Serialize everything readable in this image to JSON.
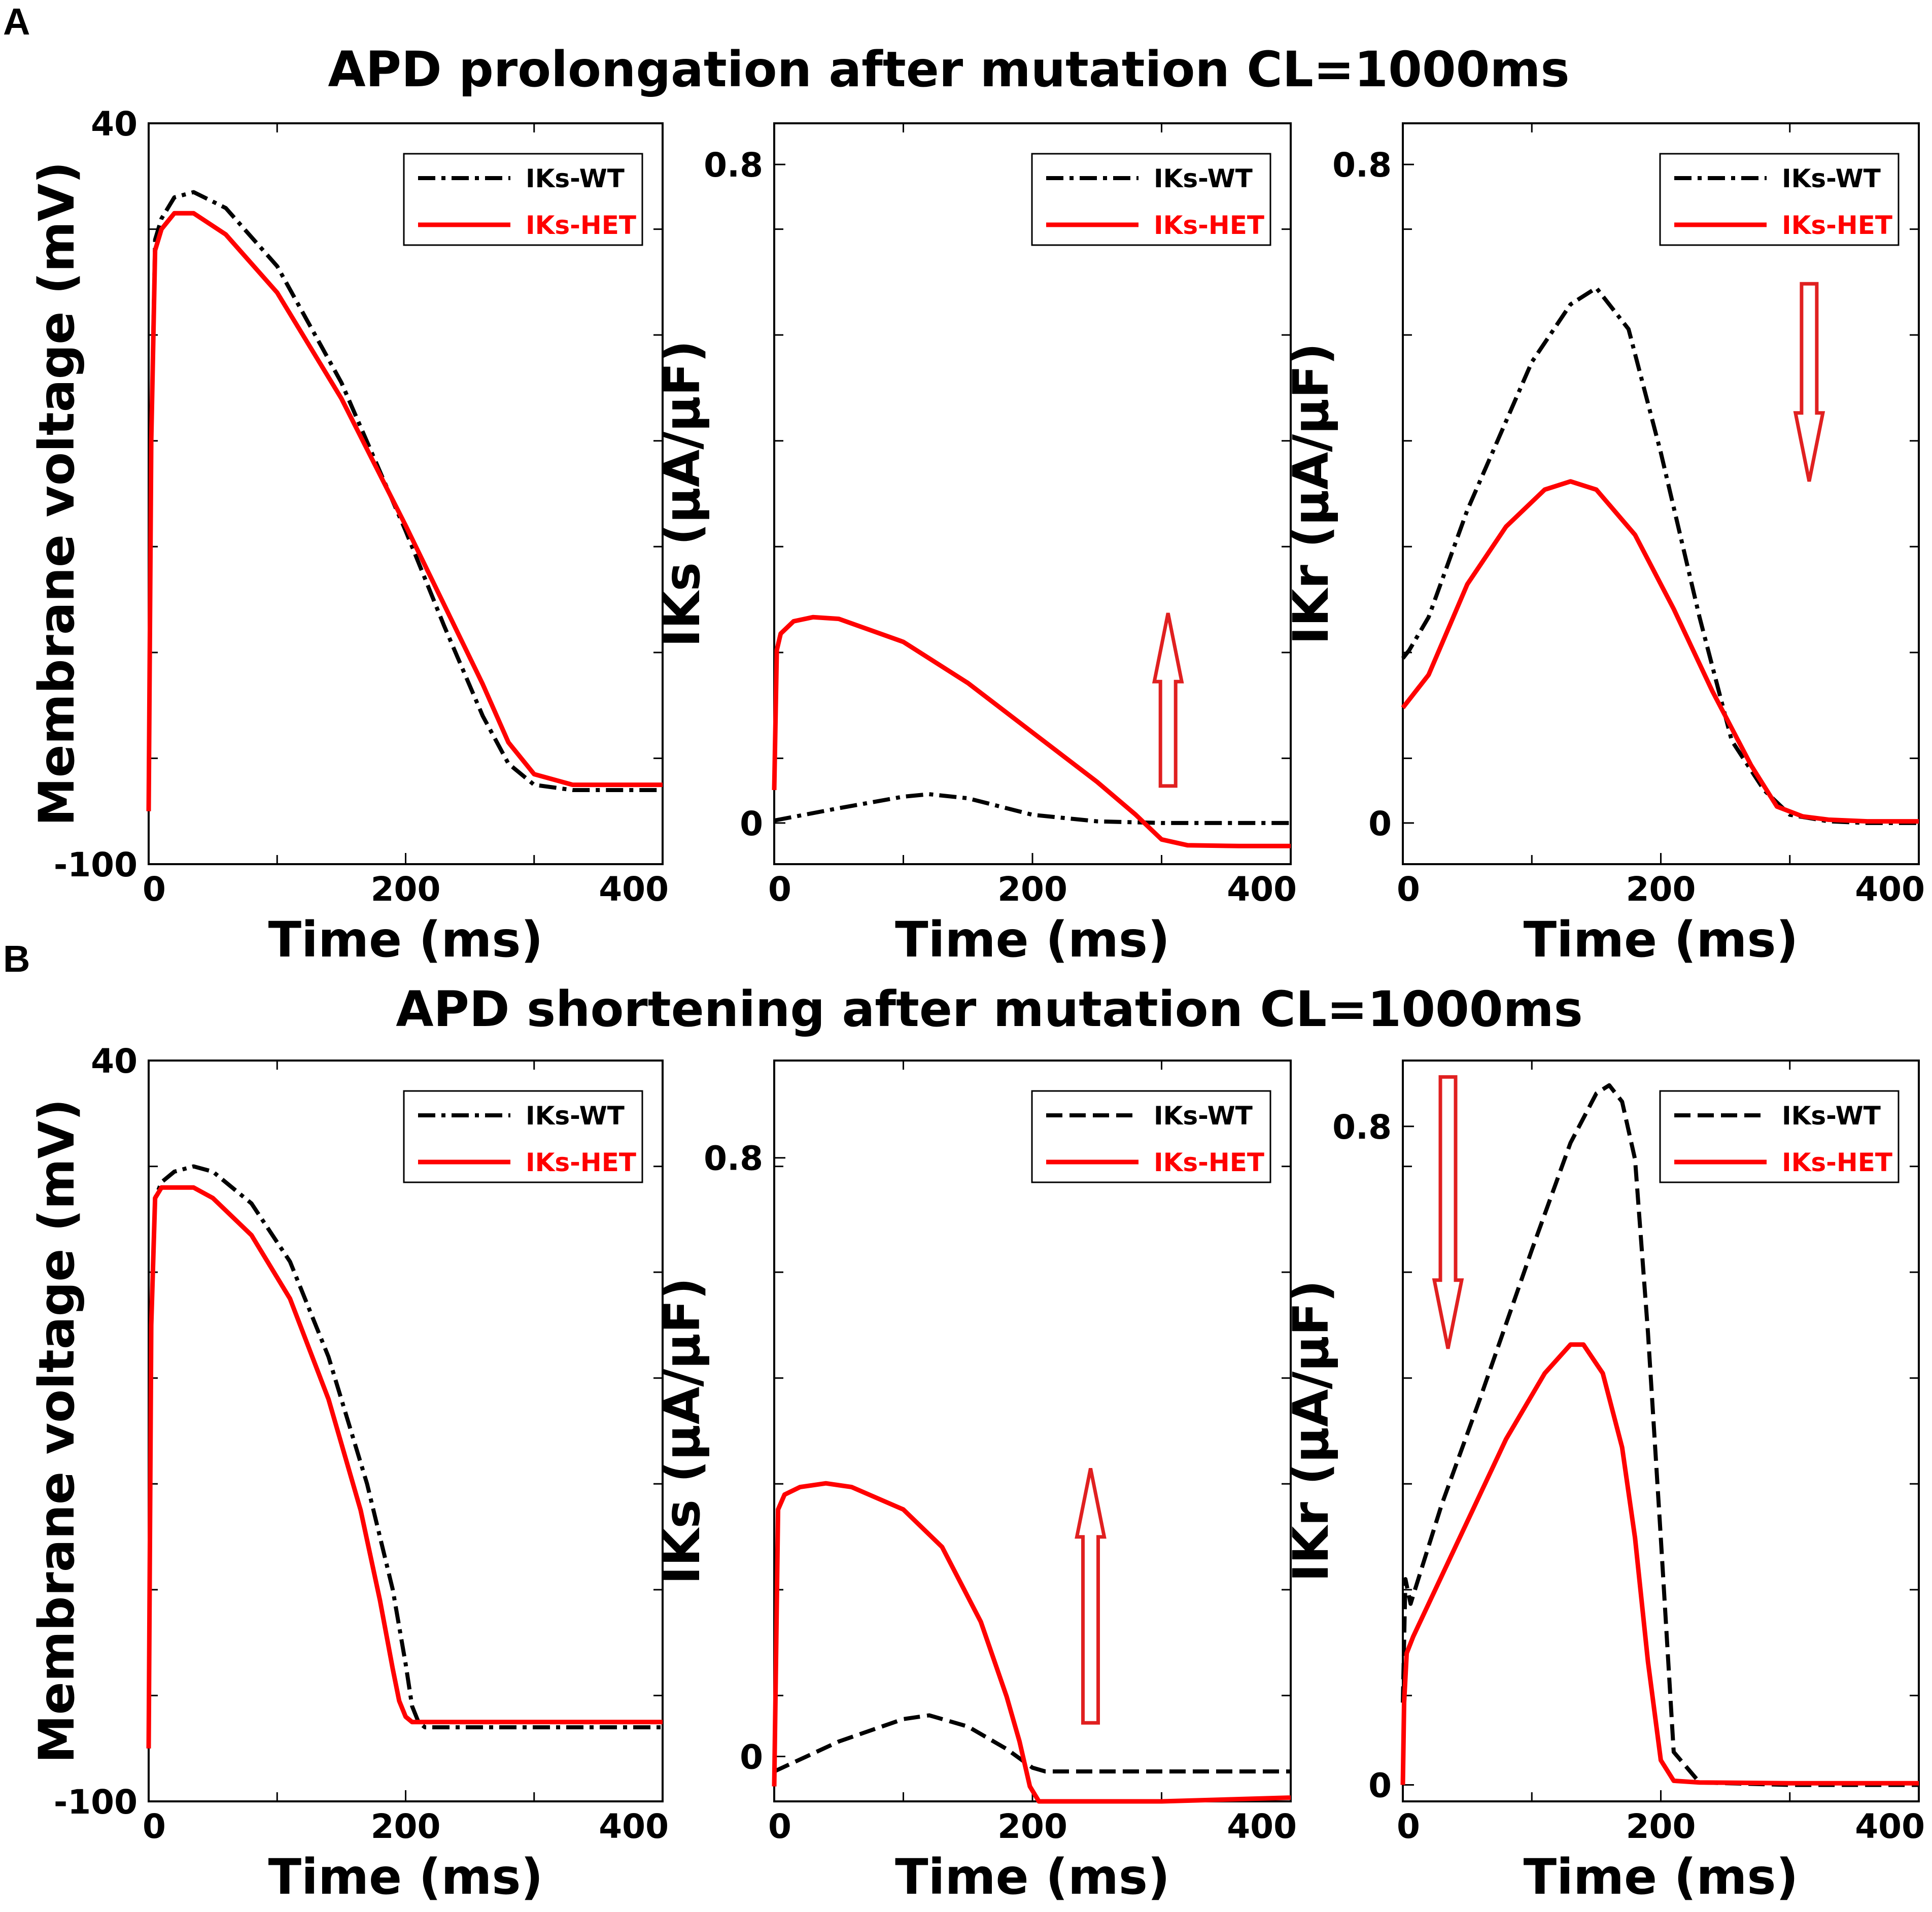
{
  "colors": {
    "wt": "#000000",
    "het": "#ff0000",
    "arrow": "#e02020"
  },
  "panels": [
    {
      "letter": "A",
      "title": "APD prolongation after mutation CL=1000ms"
    },
    {
      "letter": "B",
      "title": "APD shortening after mutation CL=1000ms"
    }
  ],
  "chart_data": [
    {
      "id": "A1",
      "type": "line",
      "row": 0,
      "col": 0,
      "xlabel": "Time (ms)",
      "ylabel": "Membrane voltage (mV)",
      "xlim": [
        0,
        400
      ],
      "ylim": [
        -100,
        40
      ],
      "xticks": [
        0,
        200,
        400
      ],
      "xtick_labels": [
        "0",
        "200",
        "400"
      ],
      "yticks": [
        -100,
        40
      ],
      "ytick_labels": [
        "-100",
        "40"
      ],
      "legend": [
        "IKs-WT",
        "IKs-HET"
      ],
      "legend_position": "top-right",
      "arrow": null,
      "series": [
        {
          "name": "IKs-WT",
          "style": "dashdot",
          "x": [
            0,
            2,
            5,
            10,
            20,
            35,
            60,
            100,
            150,
            200,
            230,
            260,
            280,
            300,
            330,
            360,
            400
          ],
          "y": [
            -90,
            -20,
            18,
            22,
            26,
            27,
            24,
            13,
            -9,
            -37,
            -55,
            -72,
            -81,
            -85,
            -86,
            -86,
            -86
          ]
        },
        {
          "name": "IKs-HET",
          "style": "solid",
          "x": [
            0,
            2,
            5,
            10,
            20,
            35,
            60,
            100,
            150,
            200,
            230,
            260,
            280,
            300,
            330,
            360,
            400
          ],
          "y": [
            -90,
            -20,
            16,
            20,
            23,
            23,
            19,
            8,
            -12,
            -36,
            -51,
            -66,
            -77,
            -83,
            -85,
            -85,
            -85
          ]
        }
      ]
    },
    {
      "id": "A2",
      "type": "line",
      "row": 0,
      "col": 1,
      "xlabel": "Time (ms)",
      "ylabel": "IKs (μA/μF)",
      "xlim": [
        0,
        400
      ],
      "ylim": [
        -0.05,
        0.85
      ],
      "xticks": [
        0,
        200,
        400
      ],
      "xtick_labels": [
        "0",
        "200",
        "400"
      ],
      "yticks": [
        0,
        0.8
      ],
      "ytick_labels": [
        "0",
        "0.8"
      ],
      "legend": [
        "IKs-WT",
        "IKs-HET"
      ],
      "legend_position": "top-right",
      "arrow": {
        "direction": "up",
        "x": 305,
        "y_from": 0.045,
        "y_to": 0.255
      },
      "series": [
        {
          "name": "IKs-WT",
          "style": "dashdot",
          "x": [
            0,
            50,
            100,
            120,
            150,
            200,
            250,
            300,
            350,
            400
          ],
          "y": [
            0.003,
            0.018,
            0.032,
            0.035,
            0.03,
            0.01,
            0.002,
            0.0,
            0.0,
            0.0
          ]
        },
        {
          "name": "IKs-HET",
          "style": "solid",
          "x": [
            0,
            2,
            5,
            15,
            30,
            50,
            100,
            150,
            200,
            250,
            280,
            300,
            320,
            360,
            400
          ],
          "y": [
            0.04,
            0.21,
            0.23,
            0.245,
            0.25,
            0.248,
            0.22,
            0.17,
            0.11,
            0.05,
            0.01,
            -0.02,
            -0.027,
            -0.028,
            -0.028
          ]
        }
      ]
    },
    {
      "id": "A3",
      "type": "line",
      "row": 0,
      "col": 2,
      "xlabel": "Time (ms)",
      "ylabel": "IKr (μA/μF)",
      "xlim": [
        0,
        400
      ],
      "ylim": [
        -0.05,
        0.85
      ],
      "xticks": [
        0,
        200,
        400
      ],
      "xtick_labels": [
        "0",
        "200",
        "400"
      ],
      "yticks": [
        0,
        0.8
      ],
      "ytick_labels": [
        "0",
        "0.8"
      ],
      "legend": [
        "IKs-WT",
        "IKs-HET"
      ],
      "legend_position": "top-right",
      "arrow": {
        "direction": "down",
        "x": 315,
        "y_from": 0.655,
        "y_to": 0.415
      },
      "series": [
        {
          "name": "IKs-WT",
          "style": "dashdot",
          "x": [
            0,
            5,
            20,
            50,
            100,
            130,
            150,
            175,
            200,
            230,
            255,
            280,
            300,
            330,
            360,
            400
          ],
          "y": [
            0.2,
            0.21,
            0.25,
            0.38,
            0.56,
            0.63,
            0.65,
            0.6,
            0.45,
            0.25,
            0.1,
            0.04,
            0.01,
            0.002,
            0.0,
            0.0
          ]
        },
        {
          "name": "IKs-HET",
          "style": "solid",
          "x": [
            0,
            5,
            20,
            50,
            80,
            110,
            130,
            150,
            180,
            210,
            240,
            270,
            290,
            310,
            330,
            360,
            400
          ],
          "y": [
            0.14,
            0.15,
            0.18,
            0.29,
            0.36,
            0.405,
            0.415,
            0.405,
            0.35,
            0.26,
            0.16,
            0.07,
            0.02,
            0.008,
            0.004,
            0.002,
            0.002
          ]
        }
      ]
    },
    {
      "id": "B1",
      "type": "line",
      "row": 1,
      "col": 0,
      "xlabel": "Time (ms)",
      "ylabel": "Membrane voltage (mV)",
      "xlim": [
        0,
        400
      ],
      "ylim": [
        -100,
        40
      ],
      "xticks": [
        0,
        200,
        400
      ],
      "xtick_labels": [
        "0",
        "200",
        "400"
      ],
      "yticks": [
        -100,
        40
      ],
      "ytick_labels": [
        "-100",
        "40"
      ],
      "legend": [
        "IKs-WT",
        "IKs-HET"
      ],
      "legend_position": "top-right",
      "arrow": null,
      "series": [
        {
          "name": "IKs-WT",
          "style": "dashdot",
          "x": [
            0,
            2,
            5,
            10,
            20,
            35,
            50,
            80,
            110,
            140,
            170,
            190,
            200,
            205,
            210,
            215,
            250,
            300,
            400
          ],
          "y": [
            -90,
            -10,
            14,
            17,
            19,
            20,
            19,
            13,
            2,
            -16,
            -40,
            -60,
            -74,
            -82,
            -85,
            -86,
            -86,
            -86,
            -86
          ]
        },
        {
          "name": "IKs-HET",
          "style": "solid",
          "x": [
            0,
            2,
            5,
            10,
            20,
            35,
            50,
            80,
            110,
            140,
            165,
            180,
            190,
            195,
            200,
            205,
            250,
            300,
            400
          ],
          "y": [
            -90,
            -10,
            14,
            16,
            16,
            16,
            14,
            7,
            -5,
            -24,
            -45,
            -62,
            -75,
            -81,
            -84,
            -85,
            -85,
            -85,
            -85
          ]
        }
      ]
    },
    {
      "id": "B2",
      "type": "line",
      "row": 1,
      "col": 1,
      "xlabel": "Time (ms)",
      "ylabel": "IKs (μA/μF)",
      "xlim": [
        0,
        400
      ],
      "ylim": [
        -0.06,
        0.93
      ],
      "xticks": [
        0,
        200,
        400
      ],
      "xtick_labels": [
        "0",
        "200",
        "400"
      ],
      "yticks": [
        0,
        0.8
      ],
      "ytick_labels": [
        "0",
        "0.8"
      ],
      "legend": [
        "IKs-WT",
        "IKs-HET"
      ],
      "legend_position": "top-right",
      "arrow": {
        "direction": "up",
        "x": 245,
        "y_from": 0.045,
        "y_to": 0.385
      },
      "series": [
        {
          "name": "IKs-WT",
          "style": "dashed",
          "x": [
            0,
            50,
            100,
            120,
            150,
            180,
            200,
            210,
            250,
            300,
            400
          ],
          "y": [
            -0.02,
            0.02,
            0.05,
            0.055,
            0.04,
            0.01,
            -0.015,
            -0.02,
            -0.02,
            -0.02,
            -0.02
          ]
        },
        {
          "name": "IKs-HET",
          "style": "solid",
          "x": [
            0,
            1,
            3,
            8,
            20,
            40,
            60,
            100,
            130,
            160,
            180,
            190,
            198,
            205,
            250,
            300,
            400
          ],
          "y": [
            -0.04,
            0.08,
            0.33,
            0.35,
            0.36,
            0.365,
            0.36,
            0.33,
            0.28,
            0.18,
            0.08,
            0.02,
            -0.04,
            -0.06,
            -0.06,
            -0.06,
            -0.055
          ]
        }
      ]
    },
    {
      "id": "B3",
      "type": "line",
      "row": 1,
      "col": 2,
      "xlabel": "Time (ms)",
      "ylabel": "IKr (μA/μF)",
      "xlim": [
        0,
        400
      ],
      "ylim": [
        -0.02,
        0.88
      ],
      "xticks": [
        0,
        200,
        400
      ],
      "xtick_labels": [
        "0",
        "200",
        "400"
      ],
      "yticks": [
        0,
        0.8
      ],
      "ytick_labels": [
        "0",
        "0.8"
      ],
      "legend": [
        "IKs-WT",
        "IKs-HET"
      ],
      "legend_position": "top-right",
      "arrow": {
        "direction": "down",
        "x": 35,
        "y_from": 0.86,
        "y_to": 0.53
      },
      "series": [
        {
          "name": "IKs-WT",
          "style": "dashed",
          "x": [
            0,
            2,
            6,
            10,
            30,
            60,
            100,
            130,
            150,
            160,
            170,
            180,
            190,
            200,
            210,
            230,
            300,
            400
          ],
          "y": [
            0.1,
            0.25,
            0.22,
            0.24,
            0.34,
            0.47,
            0.65,
            0.78,
            0.84,
            0.85,
            0.83,
            0.76,
            0.55,
            0.3,
            0.04,
            0.003,
            0.0,
            0.0
          ]
        },
        {
          "name": "IKs-HET",
          "style": "solid",
          "x": [
            0,
            1,
            3,
            8,
            20,
            50,
            80,
            110,
            130,
            140,
            155,
            170,
            180,
            190,
            200,
            210,
            230,
            300,
            400
          ],
          "y": [
            0.0,
            0.1,
            0.16,
            0.18,
            0.22,
            0.32,
            0.42,
            0.5,
            0.535,
            0.535,
            0.5,
            0.41,
            0.3,
            0.15,
            0.03,
            0.005,
            0.003,
            0.002,
            0.002
          ]
        }
      ]
    }
  ]
}
